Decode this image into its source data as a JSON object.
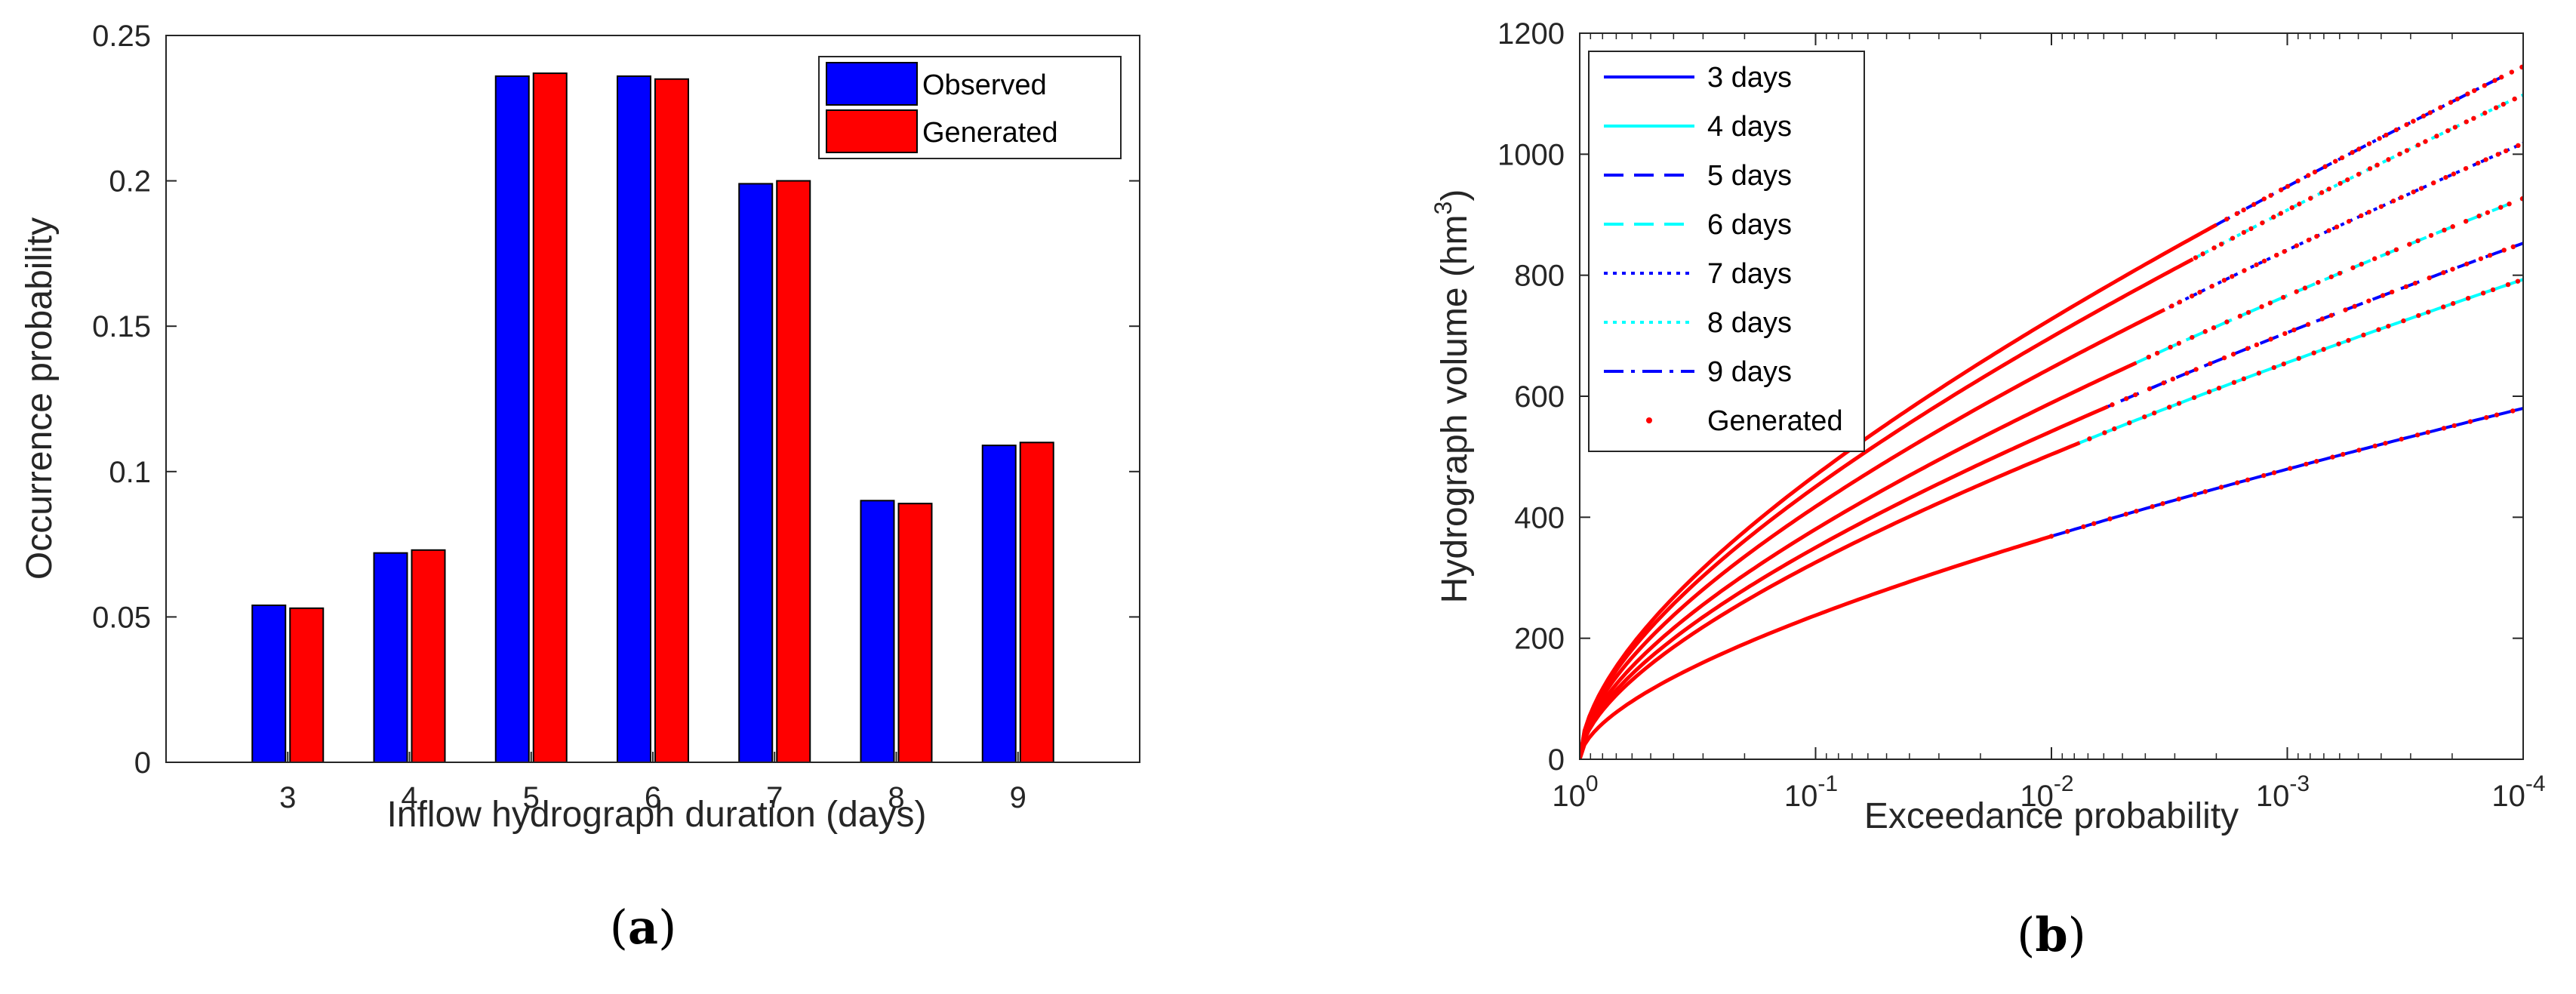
{
  "chart_data": [
    {
      "type": "bar",
      "panel_label": "a",
      "xlabel": "Inflow hydrograph duration (days)",
      "ylabel": "Occurrence probability",
      "categories": [
        "3",
        "4",
        "5",
        "6",
        "7",
        "8",
        "9"
      ],
      "ylim": [
        0,
        0.25
      ],
      "yticks": [
        "0",
        "0.05",
        "0.1",
        "0.15",
        "0.2",
        "0.25"
      ],
      "legend_position": "top-right",
      "series": [
        {
          "name": "Observed",
          "color": "#0000FF",
          "values": [
            0.054,
            0.072,
            0.236,
            0.236,
            0.199,
            0.09,
            0.109
          ]
        },
        {
          "name": "Generated",
          "color": "#FF0000",
          "values": [
            0.053,
            0.073,
            0.237,
            0.235,
            0.2,
            0.089,
            0.11
          ]
        }
      ]
    },
    {
      "type": "line",
      "panel_label": "b",
      "xlabel": "Exceedance probability",
      "ylabel": "Hydrograph volume (hm",
      "ylabel_sup": "3",
      "ylabel_close": ")",
      "xscale": "log-reversed",
      "xlim": [
        1,
        0.0001
      ],
      "ylim": [
        0,
        1200
      ],
      "xtick_bases": [
        "10",
        "10",
        "10",
        "10",
        "10"
      ],
      "xtick_exps": [
        "0",
        "-1",
        "-2",
        "-3",
        "-4"
      ],
      "yticks": [
        "0",
        "200",
        "400",
        "600",
        "800",
        "1000",
        "1200"
      ],
      "legend_position": "top-left",
      "series": [
        {
          "name": "3 days",
          "color": "#0000FF",
          "style": "solid",
          "end_value": 580
        },
        {
          "name": "4 days",
          "color": "#00FFFF",
          "style": "solid",
          "end_value": 793
        },
        {
          "name": "5 days",
          "color": "#0000FF",
          "style": "dashed",
          "end_value": 853
        },
        {
          "name": "6 days",
          "color": "#00FFFF",
          "style": "dashed",
          "end_value": 927
        },
        {
          "name": "7 days",
          "color": "#0000FF",
          "style": "dotted",
          "end_value": 1018
        },
        {
          "name": "8 days",
          "color": "#00FFFF",
          "style": "dotted",
          "end_value": 1098
        },
        {
          "name": "9 days",
          "color": "#0000FF",
          "style": "dashdot",
          "end_value": 1145
        },
        {
          "name": "Generated",
          "color": "#FF0000",
          "style": "points"
        }
      ]
    }
  ]
}
